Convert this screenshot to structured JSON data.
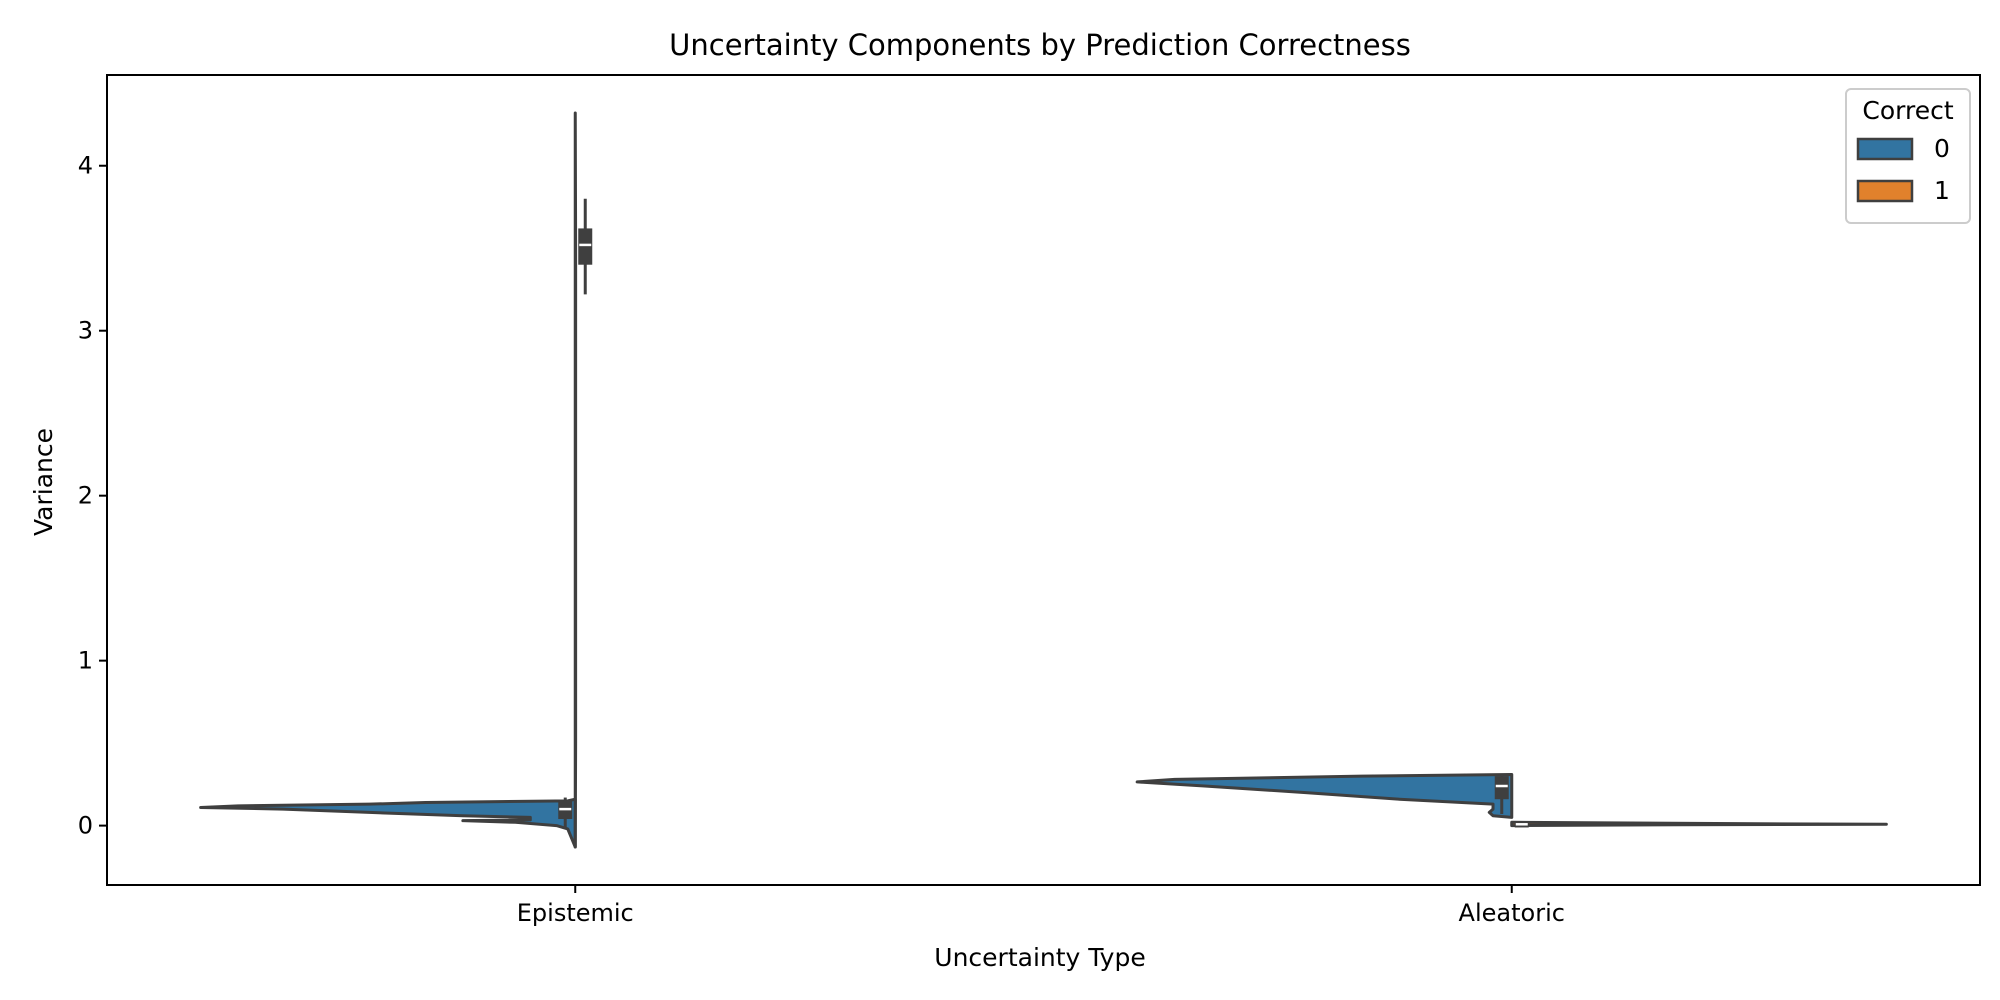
{
  "chart_data": {
    "type": "violin",
    "title": "Uncertainty Components by Prediction Correctness",
    "xlabel": "Uncertainty Type",
    "ylabel": "Variance",
    "categories": [
      "Epistemic",
      "Aleatoric"
    ],
    "y_ticks": [
      0,
      1,
      2,
      3,
      4
    ],
    "ylim": [
      -0.36,
      4.55
    ],
    "legend": {
      "title": "Correct",
      "placement": "top-right",
      "entries": [
        "0",
        "1"
      ]
    },
    "colors": {
      "0": "#3274a1",
      "1": "#e1812c",
      "edge": "#3f3f3f"
    },
    "series": [
      {
        "name": "0",
        "side": "left",
        "violins": [
          {
            "category": "Epistemic",
            "profile": [
              [
                -0.13,
                0.0
              ],
              [
                -0.02,
                0.02
              ],
              [
                0.0,
                0.05
              ],
              [
                0.02,
                0.16
              ],
              [
                0.03,
                0.3
              ],
              [
                0.035,
                0.12
              ],
              [
                0.05,
                0.12
              ],
              [
                0.06,
                0.3
              ],
              [
                0.08,
                0.55
              ],
              [
                0.1,
                0.78
              ],
              [
                0.11,
                1.0
              ],
              [
                0.12,
                0.9
              ],
              [
                0.13,
                0.55
              ],
              [
                0.14,
                0.4
              ],
              [
                0.15,
                0.02
              ],
              [
                0.16,
                0.0
              ]
            ],
            "quartiles": [
              0.04,
              0.1,
              0.15
            ],
            "whiskers": [
              -0.02,
              0.17
            ]
          },
          {
            "category": "Aleatoric",
            "profile": [
              [
                0.05,
                0.0
              ],
              [
                0.06,
                0.05
              ],
              [
                0.08,
                0.06
              ],
              [
                0.1,
                0.05
              ],
              [
                0.13,
                0.05
              ],
              [
                0.16,
                0.3
              ],
              [
                0.2,
                0.55
              ],
              [
                0.24,
                0.82
              ],
              [
                0.265,
                1.0
              ],
              [
                0.28,
                0.9
              ],
              [
                0.3,
                0.4
              ],
              [
                0.31,
                0.0
              ]
            ],
            "quartiles": [
              0.16,
              0.24,
              0.3
            ],
            "whiskers": [
              0.07,
              0.31
            ]
          }
        ]
      },
      {
        "name": "1",
        "side": "right",
        "violins": [
          {
            "category": "Epistemic",
            "profile": [
              [
                -0.13,
                0.0
              ],
              [
                0.5,
                0.001
              ],
              [
                2.0,
                0.001
              ],
              [
                3.5,
                0.001
              ],
              [
                4.32,
                0.0
              ]
            ],
            "quartiles": [
              3.4,
              3.52,
              3.62
            ],
            "whiskers": [
              3.22,
              3.8
            ]
          },
          {
            "category": "Aleatoric",
            "profile": [
              [
                0.0,
                0.0
              ],
              [
                0.005,
                0.45
              ],
              [
                0.008,
                1.0
              ],
              [
                0.012,
                0.6
              ],
              [
                0.02,
                0.0
              ]
            ],
            "quartiles": [
              0.004,
              0.008,
              0.013
            ],
            "whiskers": [
              0.0,
              0.02
            ]
          }
        ]
      }
    ]
  }
}
